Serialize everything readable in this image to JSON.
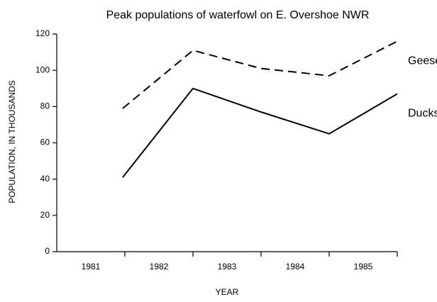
{
  "chart_data": {
    "type": "line",
    "title": "Peak populations of waterfowl on E. Overshoe NWR",
    "xlabel": "YEAR",
    "ylabel": "POPULATION, IN THOUSANDS",
    "categories": [
      "1981",
      "1982",
      "1983",
      "1984",
      "1985"
    ],
    "series": [
      {
        "name": "Geese",
        "color": "#000000",
        "dash": true,
        "values": [
          79,
          111,
          101,
          97,
          116
        ]
      },
      {
        "name": "Ducks",
        "color": "#000000",
        "dash": false,
        "values": [
          41,
          90,
          77,
          65,
          87
        ]
      }
    ],
    "ylim": [
      0,
      120
    ],
    "yticks": [
      0,
      20,
      40,
      60,
      80,
      100,
      120
    ],
    "grid": false,
    "legend": "direct"
  }
}
